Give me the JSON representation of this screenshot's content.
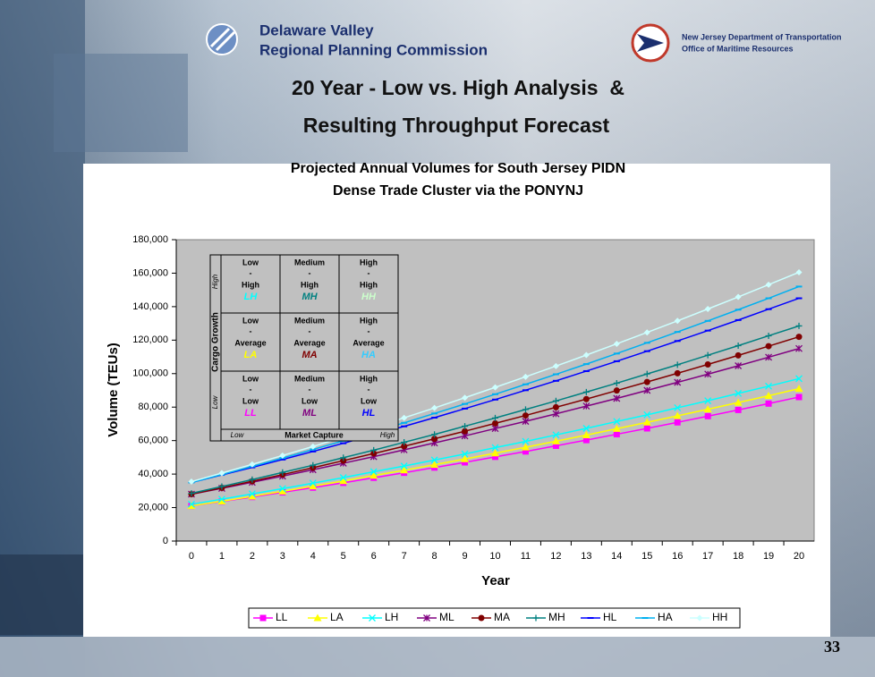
{
  "slide": {
    "org_left": [
      "Delaware Valley",
      "Regional Planning Commission"
    ],
    "org_right": [
      "New Jersey Department of Transportation",
      "Office of Maritime Resources"
    ],
    "title": [
      "20 Year - Low vs. High Analysis  &",
      "Resulting Throughput Forecast"
    ],
    "page_number": "33"
  },
  "chart_data": {
    "type": "line",
    "title": [
      "Projected Annual Volumes for South Jersey PIDN",
      "Dense Trade Cluster via the PONYNJ"
    ],
    "x_label": "Year",
    "y_label": "Volume (TEUs)",
    "categories": [
      0,
      1,
      2,
      3,
      4,
      5,
      6,
      7,
      8,
      9,
      10,
      11,
      12,
      13,
      14,
      15,
      16,
      17,
      18,
      19,
      20
    ],
    "ylim": [
      0,
      180000
    ],
    "yticks": [
      0,
      {
        "value": 20000,
        "label": "20,000"
      },
      {
        "value": 40000,
        "label": "40,000"
      },
      {
        "value": 60000,
        "label": "60,000"
      },
      {
        "value": 80000,
        "label": "80,000"
      },
      {
        "value": 100000,
        "label": "100,000"
      },
      {
        "value": 120000,
        "label": "120,000"
      },
      {
        "value": 140000,
        "label": "140,000"
      },
      {
        "value": 160000,
        "label": "160,000"
      },
      {
        "value": 180000,
        "label": "180,000"
      }
    ],
    "grid": false,
    "legend": "bottom",
    "plot_background": "#c0c0c0",
    "series": [
      {
        "name": "LL",
        "color": "#ff00ff",
        "marker": "square",
        "values": [
          21000,
          23600,
          26300,
          29100,
          31900,
          34800,
          37800,
          40800,
          43900,
          47000,
          50300,
          53500,
          56900,
          60300,
          63800,
          67300,
          70900,
          74600,
          78300,
          82100,
          86000
        ]
      },
      {
        "name": "LA",
        "color": "#ffff00",
        "marker": "triangle",
        "values": [
          21000,
          23800,
          26700,
          29700,
          32800,
          35900,
          39100,
          42300,
          45600,
          49000,
          52500,
          56000,
          59600,
          63300,
          67100,
          70900,
          74800,
          78700,
          82700,
          86800,
          91000
        ]
      },
      {
        "name": "LH",
        "color": "#00ffff",
        "marker": "x",
        "values": [
          22000,
          25000,
          28200,
          31300,
          34600,
          37900,
          41400,
          44800,
          48400,
          52000,
          55800,
          59500,
          63400,
          67300,
          71400,
          75400,
          79600,
          83800,
          88200,
          92500,
          97000
        ]
      },
      {
        "name": "ML",
        "color": "#800080",
        "marker": "star",
        "values": [
          28000,
          31500,
          35100,
          38800,
          42600,
          46500,
          50400,
          54500,
          58600,
          62800,
          67200,
          71500,
          76000,
          80600,
          85200,
          90000,
          94800,
          99700,
          104700,
          109800,
          115000
        ]
      },
      {
        "name": "MA",
        "color": "#800000",
        "marker": "circle",
        "values": [
          28000,
          31800,
          35700,
          39700,
          43800,
          48000,
          52300,
          56600,
          61100,
          65600,
          70300,
          75000,
          79900,
          84800,
          89900,
          95000,
          100200,
          105500,
          110900,
          116400,
          122000
        ]
      },
      {
        "name": "MH",
        "color": "#008080",
        "marker": "plus",
        "values": [
          28500,
          32600,
          36700,
          41000,
          45300,
          49800,
          54300,
          59000,
          63700,
          68600,
          73500,
          78600,
          83700,
          89000,
          94300,
          99800,
          105300,
          111000,
          116700,
          122600,
          128500
        ]
      },
      {
        "name": "HL",
        "color": "#0000ff",
        "marker": "dash",
        "values": [
          35000,
          39500,
          44000,
          48700,
          53500,
          58400,
          63400,
          68500,
          73700,
          79100,
          84500,
          90100,
          95700,
          101500,
          107400,
          113400,
          119500,
          125700,
          132000,
          138500,
          145000
        ]
      },
      {
        "name": "HA",
        "color": "#00b0f0",
        "marker": "dash",
        "values": [
          35000,
          39700,
          44600,
          49600,
          54700,
          59900,
          65200,
          70600,
          76200,
          81900,
          87700,
          93600,
          99600,
          105700,
          112000,
          118400,
          124900,
          131500,
          138200,
          145000,
          152000
        ]
      },
      {
        "name": "HH",
        "color": "#ccffff",
        "marker": "diamond",
        "values": [
          35500,
          40600,
          45800,
          51100,
          56500,
          62100,
          67800,
          73600,
          79500,
          85600,
          91800,
          98100,
          104500,
          111100,
          117800,
          124600,
          131500,
          138600,
          145800,
          153100,
          160500
        ]
      }
    ],
    "inset": {
      "y_axis_label": "Cargo Growth",
      "y_low": "Low",
      "y_high": "High",
      "x_axis_label": "Market Capture",
      "x_low": "Low",
      "x_high": "High",
      "rows": [
        [
          {
            "level_a": "Low",
            "sep": "-",
            "level_b": "High",
            "code": "LH",
            "color": "#00ffff"
          },
          {
            "level_a": "Medium",
            "sep": "-",
            "level_b": "High",
            "code": "MH",
            "color": "#008080"
          },
          {
            "level_a": "High",
            "sep": "-",
            "level_b": "High",
            "code": "HH",
            "color": "#ccffcc"
          }
        ],
        [
          {
            "level_a": "Low",
            "sep": "-",
            "level_b": "Average",
            "code": "LA",
            "color": "#ffff00"
          },
          {
            "level_a": "Medium",
            "sep": "-",
            "level_b": "Average",
            "code": "MA",
            "color": "#800000"
          },
          {
            "level_a": "High",
            "sep": "-",
            "level_b": "Average",
            "code": "HA",
            "color": "#33ccff"
          }
        ],
        [
          {
            "level_a": "Low",
            "sep": "-",
            "level_b": "Low",
            "code": "LL",
            "color": "#ff00ff"
          },
          {
            "level_a": "Medium",
            "sep": "-",
            "level_b": "Low",
            "code": "ML",
            "color": "#800080"
          },
          {
            "level_a": "High",
            "sep": "-",
            "level_b": "Low",
            "code": "HL",
            "color": "#0000ff"
          }
        ]
      ]
    }
  }
}
